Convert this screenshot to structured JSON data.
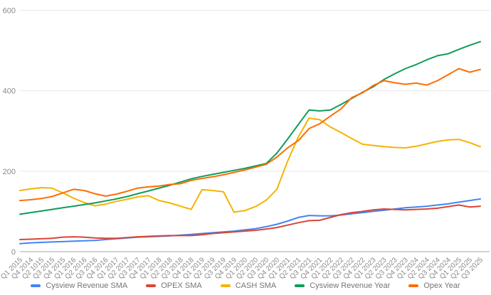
{
  "chart_data": {
    "type": "line",
    "title": "",
    "legend_position": "bottom",
    "grid": true,
    "y_axis": {
      "min": 0,
      "max": 600,
      "ticks": [
        0,
        200,
        400,
        600
      ]
    },
    "categories": [
      "Q1 2015",
      "Q4 2014",
      "Q2 1015",
      "Q3 2015",
      "Q4 2015",
      "Q1 2016",
      "Q2 2016",
      "Q3 2016",
      "Q4 2016",
      "Q1 2017",
      "Q2 2017",
      "Q3 2017",
      "Q4 2017",
      "Q1 2018",
      "Q2 2018",
      "Q3 2018",
      "Q4 2018",
      "Q1 2019",
      "Q2 2019",
      "Q3 2019",
      "Q4 2019",
      "Q1 2020",
      "Q2 2020",
      "Q3 2020",
      "Q4 2020",
      "Q1 2021",
      "Q2 2021",
      "Q3 2021",
      "Q4 2021",
      "Q1 2022",
      "Q2 2022",
      "Q3 2022",
      "Q4 2022",
      "Q1 2023",
      "Q2 2023",
      "Q3 2023",
      "Q4 2023",
      "Q1 2024",
      "Q2 2024",
      "Q3 2024",
      "Q4 2024",
      "Q1 2025",
      "Q2 2025",
      "Q3 2025"
    ],
    "series": [
      {
        "name": "Cysview Revenue SMA",
        "color": "#4285F4",
        "values": [
          20,
          22,
          23,
          24,
          25,
          26,
          27,
          28,
          30,
          32,
          34,
          36,
          37,
          38,
          39,
          41,
          43,
          45,
          47,
          49,
          51,
          54,
          57,
          62,
          68,
          76,
          85,
          90,
          89,
          89,
          91,
          94,
          97,
          100,
          103,
          106,
          109,
          111,
          113,
          116,
          119,
          123,
          127,
          131
        ]
      },
      {
        "name": "OPEX SMA",
        "color": "#DB4437",
        "values": [
          30,
          31,
          32,
          33,
          36,
          37,
          36,
          34,
          33,
          33,
          35,
          37,
          38,
          39,
          40,
          40,
          40,
          42,
          45,
          47,
          49,
          51,
          53,
          56,
          60,
          66,
          72,
          77,
          78,
          85,
          92,
          97,
          100,
          104,
          106,
          105,
          104,
          105,
          106,
          108,
          112,
          116,
          111,
          113
        ]
      },
      {
        "name": "CASH SMA",
        "color": "#F4B400",
        "values": [
          152,
          156,
          159,
          158,
          146,
          133,
          122,
          114,
          118,
          125,
          130,
          136,
          139,
          127,
          121,
          113,
          105,
          154,
          152,
          149,
          98,
          102,
          112,
          128,
          155,
          225,
          285,
          332,
          328,
          310,
          296,
          281,
          267,
          264,
          261,
          259,
          258,
          262,
          268,
          274,
          278,
          279,
          271,
          261
        ]
      },
      {
        "name": "Cysview Revenue Year",
        "color": "#0F9D58",
        "values": [
          93,
          97,
          101,
          105,
          109,
          113,
          117,
          121,
          126,
          131,
          137,
          144,
          151,
          158,
          165,
          173,
          181,
          187,
          192,
          197,
          202,
          207,
          213,
          219,
          245,
          280,
          316,
          352,
          350,
          352,
          366,
          381,
          396,
          410,
          428,
          442,
          455,
          465,
          477,
          487,
          492,
          503,
          513,
          522
        ]
      },
      {
        "name": "Opex Year",
        "color": "#FF6D00",
        "values": [
          127,
          129,
          132,
          137,
          146,
          155,
          152,
          144,
          138,
          143,
          150,
          158,
          161,
          163,
          167,
          169,
          177,
          182,
          186,
          191,
          197,
          203,
          210,
          217,
          235,
          258,
          276,
          306,
          318,
          337,
          355,
          383,
          395,
          413,
          425,
          420,
          416,
          419,
          414,
          425,
          440,
          455,
          446,
          453
        ]
      }
    ],
    "axis_label_color": "#8a8a8a",
    "gridline_color": "#e6e6e6",
    "baseline_color": "#a6a6a6",
    "legend_text_color": "#757575"
  }
}
